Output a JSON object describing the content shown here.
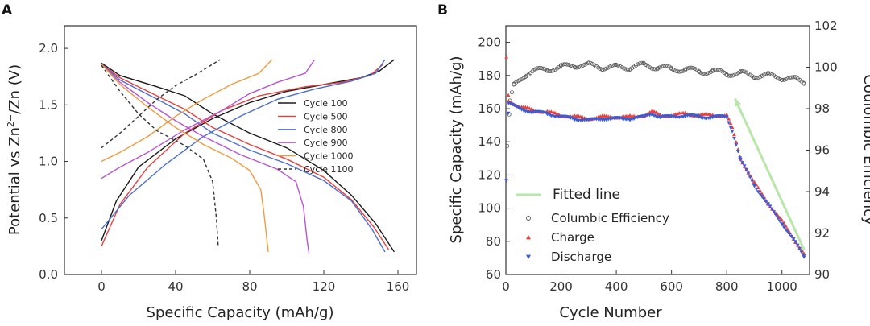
{
  "panels": {
    "a": {
      "letter": "A"
    },
    "b": {
      "letter": "B"
    }
  },
  "chart_data": [
    {
      "type": "line",
      "panel": "A",
      "title": "",
      "xlabel": "Specific Capacity (mAh/g)",
      "ylabel_prefix": "Potential vs Zn",
      "ylabel_sup": "2+",
      "ylabel_suffix": "/Zn (V)",
      "xlim": [
        -20,
        170
      ],
      "ylim": [
        0.0,
        2.2
      ],
      "xticks": [
        0,
        40,
        80,
        120,
        160
      ],
      "xtick_labels": [
        "0",
        "40",
        "80",
        "120",
        "160"
      ],
      "yticks": [
        0.0,
        0.5,
        1.0,
        1.5,
        2.0
      ],
      "ytick_labels": [
        "0.0",
        "0.5",
        "1.0",
        "1.5",
        "2.0"
      ],
      "legend_position": "right",
      "series": [
        {
          "name": "Cycle 100",
          "color": "#1a1a1a",
          "dash": false,
          "charge": [
            [
              0,
              0.3
            ],
            [
              8,
              0.65
            ],
            [
              20,
              0.95
            ],
            [
              40,
              1.2
            ],
            [
              60,
              1.38
            ],
            [
              80,
              1.52
            ],
            [
              100,
              1.62
            ],
            [
              120,
              1.68
            ],
            [
              140,
              1.74
            ],
            [
              150,
              1.8
            ],
            [
              158,
              1.9
            ]
          ],
          "discharge": [
            [
              0,
              1.87
            ],
            [
              10,
              1.76
            ],
            [
              30,
              1.66
            ],
            [
              45,
              1.58
            ],
            [
              60,
              1.42
            ],
            [
              80,
              1.25
            ],
            [
              100,
              1.12
            ],
            [
              120,
              0.92
            ],
            [
              135,
              0.7
            ],
            [
              148,
              0.45
            ],
            [
              158,
              0.2
            ]
          ]
        },
        {
          "name": "Cycle 500",
          "color": "#e8403c",
          "dash": false,
          "charge": [
            [
              0,
              0.25
            ],
            [
              10,
              0.62
            ],
            [
              25,
              0.95
            ],
            [
              45,
              1.25
            ],
            [
              65,
              1.45
            ],
            [
              85,
              1.58
            ],
            [
              110,
              1.66
            ],
            [
              130,
              1.7
            ],
            [
              145,
              1.76
            ],
            [
              152,
              1.86
            ]
          ],
          "discharge": [
            [
              0,
              1.86
            ],
            [
              10,
              1.74
            ],
            [
              30,
              1.58
            ],
            [
              45,
              1.46
            ],
            [
              60,
              1.3
            ],
            [
              80,
              1.15
            ],
            [
              100,
              1.02
            ],
            [
              120,
              0.86
            ],
            [
              135,
              0.66
            ],
            [
              147,
              0.42
            ],
            [
              155,
              0.22
            ]
          ]
        },
        {
          "name": "Cycle 800",
          "color": "#4b6fd0",
          "dash": false,
          "charge": [
            [
              0,
              0.4
            ],
            [
              15,
              0.7
            ],
            [
              35,
              0.98
            ],
            [
              55,
              1.22
            ],
            [
              75,
              1.4
            ],
            [
              95,
              1.55
            ],
            [
              115,
              1.64
            ],
            [
              135,
              1.71
            ],
            [
              148,
              1.78
            ],
            [
              153,
              1.9
            ]
          ],
          "discharge": [
            [
              0,
              1.86
            ],
            [
              10,
              1.72
            ],
            [
              30,
              1.55
            ],
            [
              45,
              1.42
            ],
            [
              60,
              1.25
            ],
            [
              80,
              1.1
            ],
            [
              100,
              0.98
            ],
            [
              120,
              0.83
            ],
            [
              135,
              0.65
            ],
            [
              146,
              0.4
            ],
            [
              153,
              0.2
            ]
          ]
        },
        {
          "name": "Cycle 900",
          "color": "#b854d4",
          "dash": false,
          "charge": [
            [
              0,
              0.85
            ],
            [
              10,
              0.95
            ],
            [
              25,
              1.08
            ],
            [
              45,
              1.28
            ],
            [
              65,
              1.45
            ],
            [
              80,
              1.6
            ],
            [
              95,
              1.7
            ],
            [
              110,
              1.78
            ],
            [
              115,
              1.9
            ]
          ],
          "discharge": [
            [
              0,
              1.86
            ],
            [
              10,
              1.7
            ],
            [
              25,
              1.52
            ],
            [
              40,
              1.36
            ],
            [
              55,
              1.22
            ],
            [
              75,
              1.06
            ],
            [
              95,
              0.93
            ],
            [
              105,
              0.82
            ],
            [
              109,
              0.6
            ],
            [
              111,
              0.3
            ],
            [
              112,
              0.19
            ]
          ]
        },
        {
          "name": "Cycle 1000",
          "color": "#ef9a3c",
          "dash": false,
          "charge": [
            [
              0,
              1.0
            ],
            [
              10,
              1.08
            ],
            [
              25,
              1.22
            ],
            [
              40,
              1.4
            ],
            [
              55,
              1.55
            ],
            [
              70,
              1.68
            ],
            [
              85,
              1.78
            ],
            [
              92,
              1.9
            ]
          ],
          "discharge": [
            [
              0,
              1.86
            ],
            [
              10,
              1.68
            ],
            [
              25,
              1.48
            ],
            [
              40,
              1.3
            ],
            [
              55,
              1.15
            ],
            [
              70,
              1.03
            ],
            [
              80,
              0.92
            ],
            [
              86,
              0.75
            ],
            [
              88,
              0.5
            ],
            [
              90,
              0.2
            ]
          ]
        },
        {
          "name": "Cycle 1100",
          "color": "#333333",
          "dash": true,
          "charge": [
            [
              0,
              1.12
            ],
            [
              10,
              1.25
            ],
            [
              20,
              1.4
            ],
            [
              30,
              1.55
            ],
            [
              40,
              1.67
            ],
            [
              50,
              1.76
            ],
            [
              58,
              1.84
            ],
            [
              64,
              1.9
            ]
          ],
          "discharge": [
            [
              0,
              1.85
            ],
            [
              10,
              1.62
            ],
            [
              20,
              1.42
            ],
            [
              30,
              1.27
            ],
            [
              45,
              1.14
            ],
            [
              55,
              1.02
            ],
            [
              60,
              0.82
            ],
            [
              62,
              0.5
            ],
            [
              63,
              0.25
            ]
          ]
        }
      ]
    },
    {
      "type": "scatter",
      "panel": "B",
      "title": "",
      "xlabel": "Cycle Number",
      "ylabel": "Specific Capacity (mAh/g)",
      "ylabel_right": "Coulombic Efficiency",
      "xlim": [
        0,
        1100
      ],
      "ylim": [
        60,
        210
      ],
      "ylim_right": [
        90,
        102
      ],
      "xticks": [
        0,
        200,
        400,
        600,
        800,
        1000
      ],
      "xtick_labels": [
        "0",
        "200",
        "400",
        "600",
        "800",
        "1000"
      ],
      "yticks": [
        60,
        80,
        100,
        120,
        140,
        160,
        180,
        200
      ],
      "ytick_labels": [
        "60",
        "80",
        "100",
        "120",
        "140",
        "160",
        "180",
        "200"
      ],
      "yticks_right": [
        90,
        92,
        94,
        96,
        98,
        100,
        102
      ],
      "ytick_labels_right": [
        "90",
        "92",
        "94",
        "96",
        "98",
        "100",
        "102"
      ],
      "legend_position": "bottom-left",
      "series": [
        {
          "name": "Columbic Efficiency",
          "axis": "right",
          "marker": "open-circle",
          "color": "#555555",
          "points": [
            [
              5,
              96.2
            ],
            [
              15,
              98.3
            ],
            [
              30,
              99.1
            ],
            [
              50,
              99.4
            ],
            [
              75,
              99.7
            ],
            [
              100,
              99.8
            ],
            [
              150,
              99.9
            ],
            [
              200,
              100.0
            ],
            [
              250,
              100.1
            ],
            [
              300,
              100.1
            ],
            [
              350,
              100.0
            ],
            [
              400,
              100.0
            ],
            [
              450,
              100.0
            ],
            [
              500,
              100.1
            ],
            [
              550,
              100.0
            ],
            [
              600,
              99.9
            ],
            [
              650,
              99.9
            ],
            [
              700,
              99.8
            ],
            [
              750,
              99.8
            ],
            [
              800,
              99.7
            ],
            [
              850,
              99.7
            ],
            [
              900,
              99.6
            ],
            [
              950,
              99.6
            ],
            [
              1000,
              99.5
            ],
            [
              1050,
              99.4
            ],
            [
              1080,
              99.3
            ]
          ]
        },
        {
          "name": "Charge",
          "axis": "left",
          "marker": "triangle-up",
          "color": "#e8403c",
          "points": [
            [
              2,
              191
            ],
            [
              10,
              165
            ],
            [
              50,
              161
            ],
            [
              100,
              159
            ],
            [
              150,
              158
            ],
            [
              200,
              156
            ],
            [
              250,
              155
            ],
            [
              300,
              154
            ],
            [
              350,
              155
            ],
            [
              400,
              155
            ],
            [
              450,
              155
            ],
            [
              500,
              156
            ],
            [
              530,
              158
            ],
            [
              560,
              156
            ],
            [
              600,
              156
            ],
            [
              650,
              157
            ],
            [
              700,
              156
            ],
            [
              750,
              156
            ],
            [
              800,
              156
            ],
            [
              820,
              148
            ],
            [
              850,
              130
            ],
            [
              900,
              115
            ],
            [
              950,
              103
            ],
            [
              1000,
              92
            ],
            [
              1050,
              80
            ],
            [
              1080,
              72
            ]
          ]
        },
        {
          "name": "Discharge",
          "axis": "left",
          "marker": "triangle-down",
          "color": "#3a5bd6",
          "points": [
            [
              2,
              117
            ],
            [
              10,
              163
            ],
            [
              50,
              160
            ],
            [
              100,
              158
            ],
            [
              150,
              157
            ],
            [
              200,
              155
            ],
            [
              250,
              154
            ],
            [
              300,
              153
            ],
            [
              350,
              154
            ],
            [
              400,
              154
            ],
            [
              450,
              154
            ],
            [
              500,
              155
            ],
            [
              530,
              157
            ],
            [
              560,
              155
            ],
            [
              600,
              155
            ],
            [
              650,
              156
            ],
            [
              700,
              155
            ],
            [
              750,
              155
            ],
            [
              800,
              155
            ],
            [
              820,
              147
            ],
            [
              850,
              129
            ],
            [
              900,
              114
            ],
            [
              950,
              102
            ],
            [
              1000,
              91
            ],
            [
              1050,
              79
            ],
            [
              1080,
              71
            ]
          ]
        },
        {
          "name": "Fitted line",
          "axis": "left",
          "marker": "line",
          "color": "#b9e6a9",
          "points": [
            [
              830,
              166
            ],
            [
              1080,
              75
            ]
          ]
        }
      ]
    }
  ]
}
